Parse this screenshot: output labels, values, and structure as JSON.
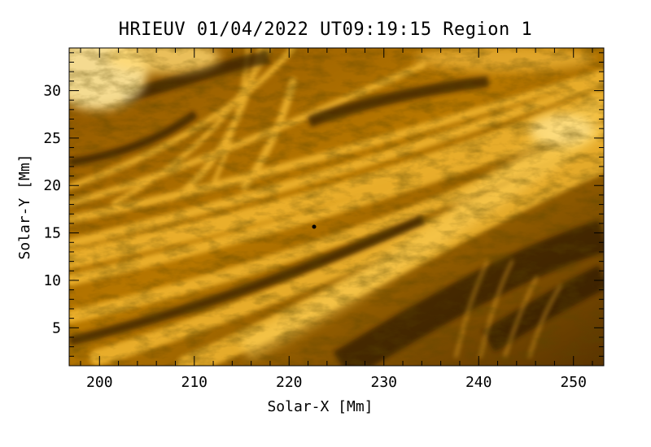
{
  "title": "HRIEUV 01/04/2022 UT09:19:15 Region 1",
  "axes": {
    "xlabel": "Solar-X [Mm]",
    "ylabel": "Solar-Y [Mm]",
    "xlim": [
      196.8,
      253.2
    ],
    "ylim": [
      1,
      34.5
    ],
    "xticks": [
      "200",
      "210",
      "220",
      "230",
      "240",
      "250"
    ],
    "yticks": [
      "5",
      "10",
      "15",
      "20",
      "25",
      "30"
    ]
  },
  "image": {
    "description_colors": {
      "dark": "#1a0f00",
      "mid": "#a86b00",
      "bright": "#f7c33a",
      "white": "#fff5c8"
    }
  }
}
